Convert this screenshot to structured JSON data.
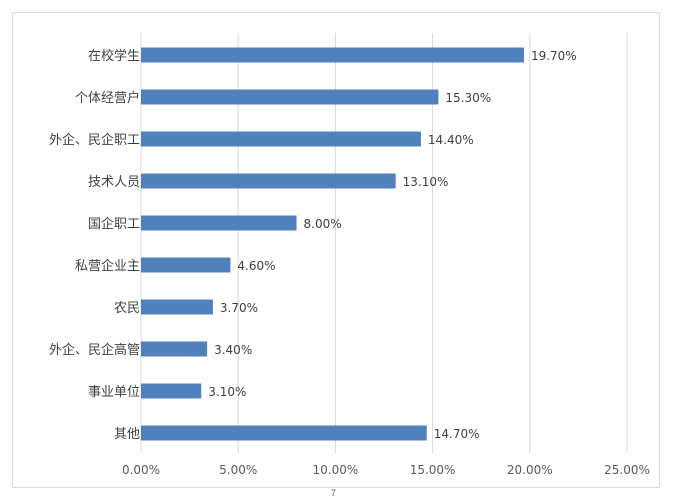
{
  "chart_data": {
    "type": "bar",
    "orientation": "horizontal",
    "title": "",
    "xlabel": "",
    "ylabel": "",
    "categories": [
      "在校学生",
      "个体经营户",
      "外企、民企职工",
      "技术人员",
      "国企职工",
      "私营企业主",
      "农民",
      "外企、民企高管",
      "事业单位",
      "其他"
    ],
    "values": [
      19.7,
      15.3,
      14.4,
      13.1,
      8.0,
      4.6,
      3.7,
      3.4,
      3.1,
      14.7
    ],
    "value_labels": [
      "19.70%",
      "15.30%",
      "14.40%",
      "13.10%",
      "8.00%",
      "4.60%",
      "3.70%",
      "3.40%",
      "3.10%",
      "14.70%"
    ],
    "xlim": [
      0,
      25
    ],
    "xticks": [
      0,
      5,
      10,
      15,
      20,
      25
    ],
    "xtick_labels": [
      "0.00%",
      "5.00%",
      "10.00%",
      "15.00%",
      "20.00%",
      "25.00%"
    ],
    "grid": true,
    "bar_color": "#4f81bd",
    "grid_color": "#d9d9d9"
  },
  "footer_mark": "7"
}
